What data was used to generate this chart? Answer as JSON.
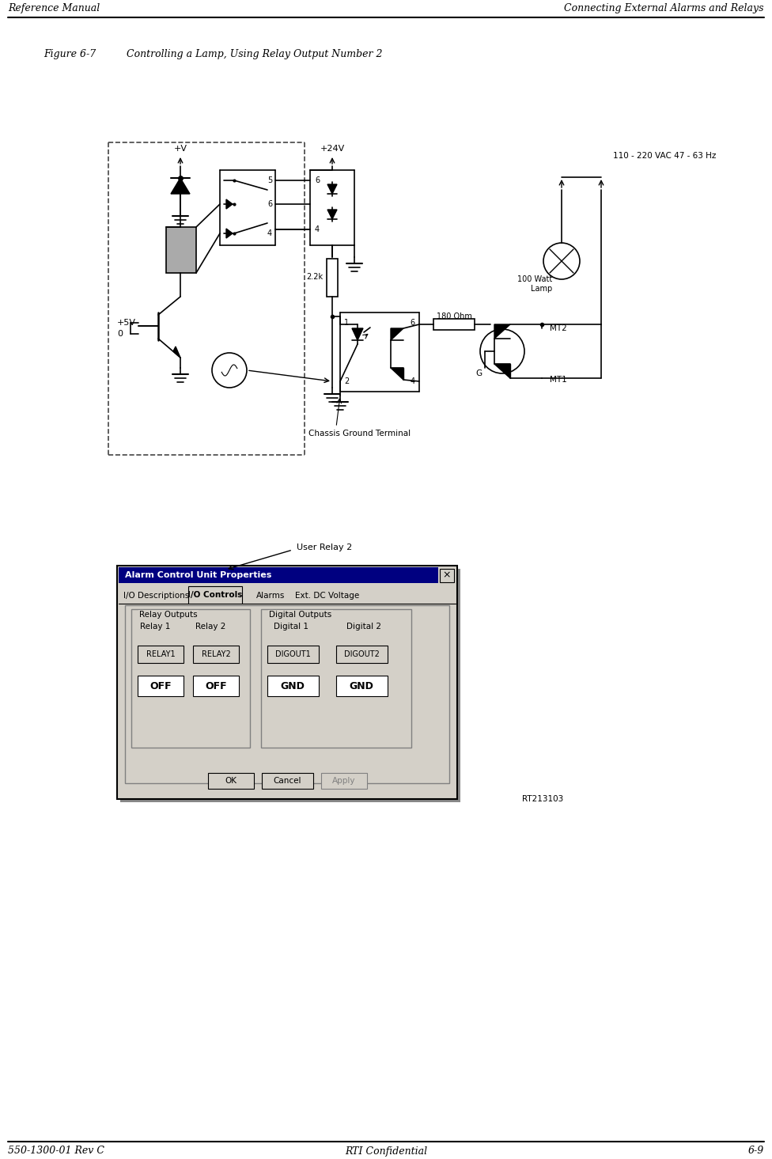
{
  "header_left": "Reference Manual",
  "header_right": "Connecting External Alarms and Relays",
  "footer_left": "550-1300-01 Rev C",
  "footer_center": "RTI Confidential",
  "footer_right": "6-9",
  "figure_label": "Figure 6-7",
  "figure_title": "Controlling a Lamp, Using Relay Output Number 2",
  "rt_label": "RT213103",
  "user_relay_label": "User Relay 2",
  "chassis_ground_label": "Chassis Ground Terminal",
  "v24_label": "+24V",
  "vac_label": "110 - 220 VAC 47 - 63 Hz",
  "watt_label": "100 Watt\nLamp",
  "ohm_label": "180 Ohm",
  "resistor_label": "2.2k",
  "v5_label": "+5V",
  "v_label": "+V",
  "mt2_label": "MT2",
  "mt1_label": "MT1",
  "g_label": "G",
  "bg_color": "#ffffff",
  "dialog_bg": "#d4d0c8",
  "dialog_title_bg": "#000080",
  "dialog_title_fg": "#ffffff"
}
